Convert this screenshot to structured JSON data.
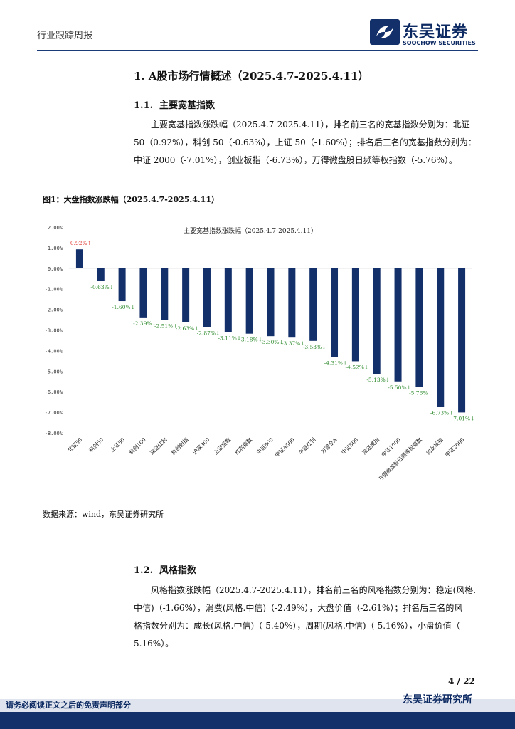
{
  "header": {
    "left_label": "行业跟踪周报",
    "logo_cn": "东吴证券",
    "logo_en": "SOOCHOW SECURITIES",
    "brand_color": "#14306b"
  },
  "section1": {
    "heading": "1.  A股市场行情概述（2025.4.7-2025.4.11）",
    "sub1": {
      "num": "1.1.",
      "title": "主要宽基指数"
    },
    "para1": [
      "主要宽基指数涨跌幅（2025.4.7-2025.4.11），排名前三名的宽基指数分别为：北证",
      "50（0.92%），科创 50（-0.63%），上证 50（-1.60%）；排名后三名的宽基指数分别为：",
      "中证 2000（-7.01%），创业板指（-6.73%），万得微盘股日频等权指数（-5.76%）。"
    ]
  },
  "figure": {
    "caption": "图1：大盘指数涨跌幅（2025.4.7-2025.4.11）",
    "source": "数据来源：wind，东吴证券研究所"
  },
  "chart_data": {
    "type": "bar",
    "title": "主要宽基指数涨跌幅（2025.4.7-2025.4.11）",
    "categories": [
      "北证50",
      "科创50",
      "上证50",
      "科创100",
      "深证红利",
      "科创创指",
      "沪深300",
      "上证指数",
      "红利指数",
      "中证800",
      "中证A500",
      "中证红利",
      "万得全A",
      "中证500",
      "深证成指",
      "中证1000",
      "万得微盘股日频等权指数",
      "创业板指",
      "中证2000"
    ],
    "values": [
      0.92,
      -0.63,
      -1.6,
      -2.39,
      -2.51,
      -2.63,
      -2.87,
      -3.11,
      -3.18,
      -3.3,
      -3.37,
      -3.53,
      -4.31,
      -4.52,
      -5.13,
      -5.5,
      -5.76,
      -6.73,
      -7.01
    ],
    "labels": [
      "0.92%↑",
      "-0.63%↓",
      "-1.60%↓",
      "-2.39%↓",
      "-2.51%↓",
      "-2.63%↓",
      "-2.87%↓",
      "-3.11%↓",
      "-3.18%↓",
      "-3.30%↓",
      "-3.37%↓",
      "-3.53%↓",
      "-4.31%↓",
      "-4.52%↓",
      "-5.13%↓",
      "-5.50%↓",
      "-5.76%↓",
      "-6.73%↓",
      "-7.01%↓"
    ],
    "yticks": [
      "2.00%",
      "1.00%",
      "0.00%",
      "-1.00%",
      "-2.00%",
      "-3.00%",
      "-4.00%",
      "-5.00%",
      "-6.00%",
      "-7.00%",
      "-8.00%"
    ],
    "ylim": [
      -8,
      2
    ],
    "bar_color": "#14306b",
    "up_color": "#e0302a",
    "down_color": "#2e8b2e",
    "grid": false
  },
  "section2": {
    "sub": {
      "num": "1.2.",
      "title": "风格指数"
    },
    "para": [
      "风格指数涨跌幅（2025.4.7-2025.4.11），排名前三名的风格指数分别为：稳定(风格.",
      "中信)（-1.66%），消费(风格.中信)（-2.49%），大盘价值（-2.61%）；排名后三名的风",
      "格指数分别为：成长(风格.中信)（-5.40%），周期(风格.中信)（-5.16%），小盘价值（-",
      "5.16%）。"
    ]
  },
  "footer": {
    "page": "4  /  22",
    "right_label": "东吴证券研究所",
    "disclaimer": "请务必阅读正文之后的免责声明部分"
  }
}
